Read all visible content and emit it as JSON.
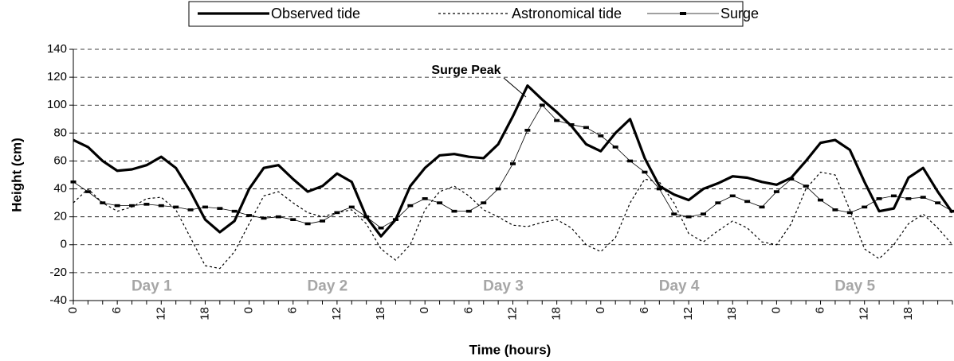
{
  "chart_data": {
    "type": "line",
    "x_label": "Time (hours)",
    "y_label": "Height (cm)",
    "annotation": "Surge Peak",
    "day_labels": [
      "Day 1",
      "Day 2",
      "Day 3",
      "Day 4",
      "Day 5"
    ],
    "categories": [
      "0",
      null,
      null,
      "6",
      null,
      null,
      "12",
      null,
      null,
      "18",
      null,
      null,
      "0",
      null,
      null,
      "6",
      null,
      null,
      "12",
      null,
      null,
      "18",
      null,
      null,
      "0",
      null,
      null,
      "6",
      null,
      null,
      "12",
      null,
      null,
      "18",
      null,
      null,
      "0",
      null,
      null,
      "6",
      null,
      null,
      "12",
      null,
      null,
      "18",
      null,
      null,
      "0",
      null,
      null,
      "6",
      null,
      null,
      "12",
      null,
      null,
      "18",
      null,
      null,
      null
    ],
    "ylim": [
      -40,
      140
    ],
    "yticks": [
      -40,
      -20,
      0,
      20,
      40,
      60,
      80,
      100,
      120,
      140
    ],
    "grid": true,
    "legend": "top",
    "series": [
      {
        "name": "Observed tide",
        "color": "#000000",
        "style": "thick",
        "values": [
          75,
          70,
          60,
          53,
          54,
          57,
          63,
          55,
          38,
          18,
          9,
          17,
          40,
          55,
          57,
          47,
          38,
          42,
          51,
          45,
          20,
          6,
          18,
          42,
          55,
          64,
          65,
          63,
          62,
          72,
          92,
          114,
          104,
          95,
          85,
          72,
          67,
          80,
          90,
          62,
          42,
          36,
          32,
          40,
          44,
          49,
          48,
          45,
          43,
          48,
          60,
          73,
          75,
          68,
          45,
          24,
          26,
          48,
          55,
          38,
          23
        ]
      },
      {
        "name": "Astronomical tide",
        "color": "#000000",
        "style": "dotted",
        "values": [
          30,
          40,
          30,
          24,
          27,
          33,
          34,
          25,
          5,
          -15,
          -17,
          -5,
          15,
          35,
          38,
          30,
          23,
          20,
          23,
          25,
          15,
          -3,
          -11,
          0,
          25,
          38,
          42,
          35,
          25,
          20,
          14,
          13,
          16,
          18,
          12,
          0,
          -5,
          5,
          30,
          47,
          45,
          30,
          8,
          2,
          10,
          17,
          12,
          2,
          0,
          15,
          40,
          52,
          50,
          25,
          -3,
          -10,
          0,
          15,
          22,
          12,
          0
        ]
      },
      {
        "name": "Surge",
        "color": "#000000",
        "style": "marker",
        "values": [
          45,
          38,
          30,
          28,
          28,
          29,
          28,
          27,
          25,
          27,
          26,
          24,
          21,
          19,
          20,
          18,
          15,
          17,
          23,
          27,
          20,
          12,
          18,
          28,
          33,
          30,
          24,
          24,
          30,
          40,
          58,
          82,
          100,
          89,
          86,
          84,
          78,
          70,
          60,
          52,
          40,
          22,
          20,
          22,
          30,
          35,
          31,
          27,
          38,
          47,
          42,
          32,
          25,
          23,
          27,
          33,
          35,
          33,
          34,
          30,
          24
        ]
      }
    ]
  }
}
